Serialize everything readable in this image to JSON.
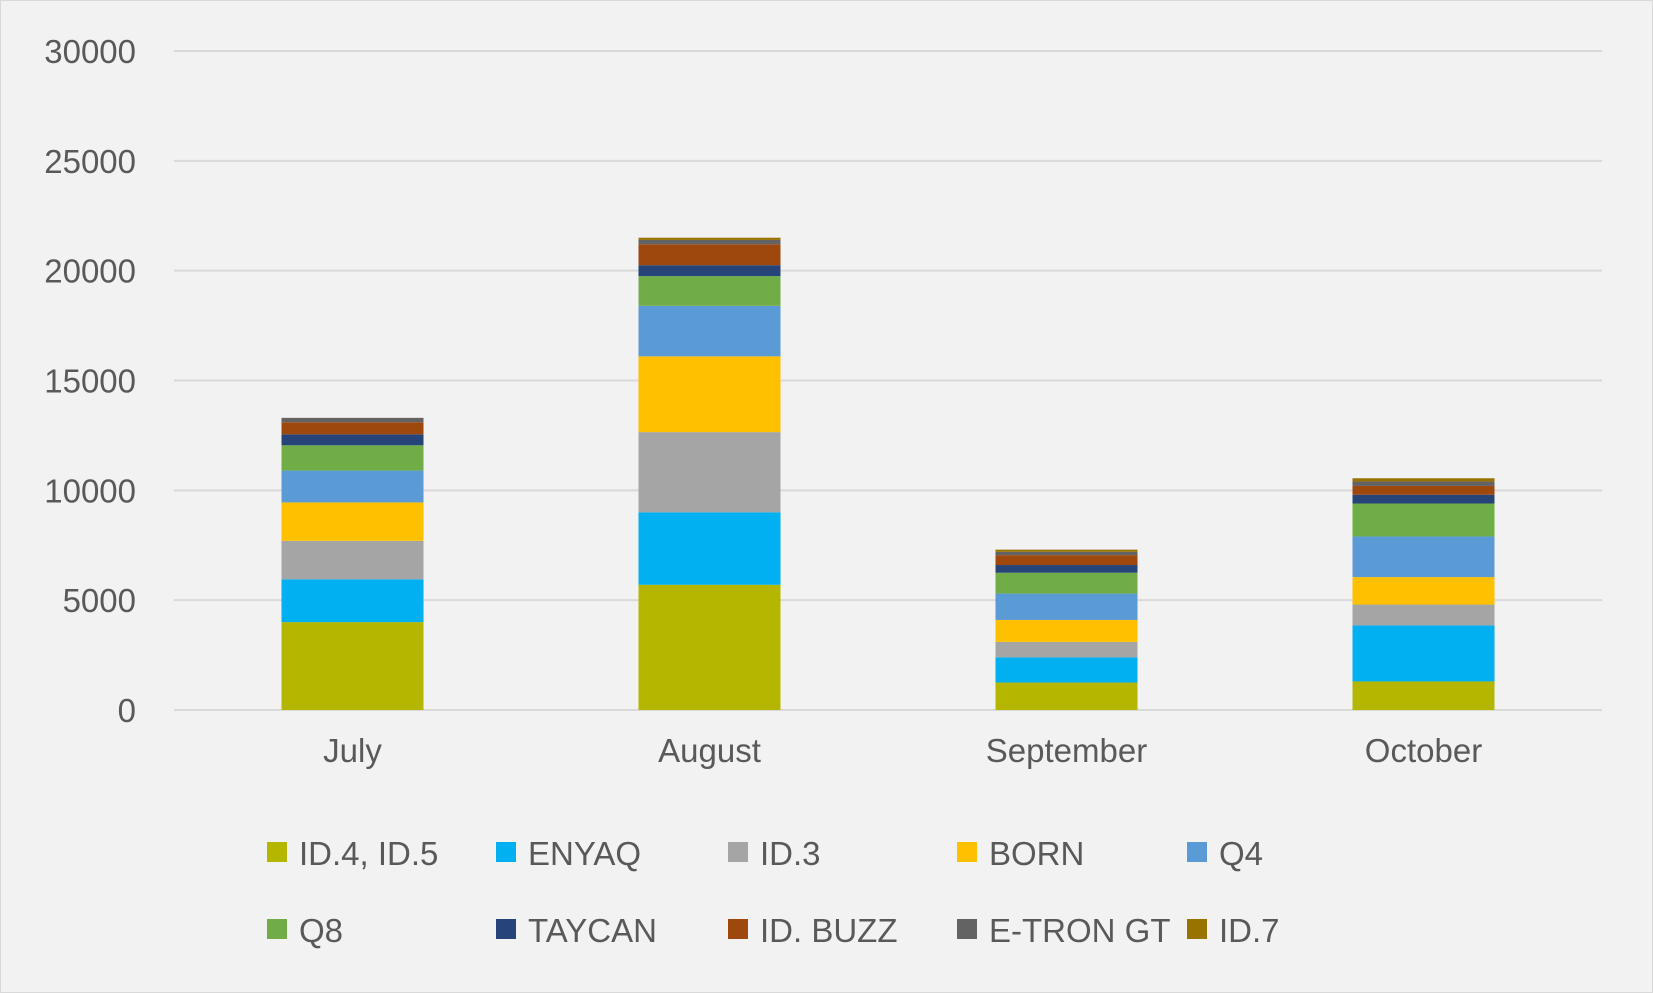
{
  "chart_data": {
    "type": "bar",
    "stacked": true,
    "categories": [
      "July",
      "August",
      "September",
      "October"
    ],
    "ylim": [
      0,
      30000
    ],
    "yticks": [
      0,
      5000,
      10000,
      15000,
      20000,
      25000,
      30000
    ],
    "ytick_labels": [
      "0",
      "5000",
      "10000",
      "15000",
      "20000",
      "25000",
      "30000"
    ],
    "grid": true,
    "legend_position": "bottom",
    "series": [
      {
        "name": "ID.4, ID.5",
        "color": "#b5b600",
        "values": [
          4000,
          5700,
          1250,
          1300
        ]
      },
      {
        "name": "ENYAQ",
        "color": "#00b0f0",
        "values": [
          1950,
          3300,
          1150,
          2550
        ]
      },
      {
        "name": "ID.3",
        "color": "#a5a5a5",
        "values": [
          1750,
          3650,
          700,
          950
        ]
      },
      {
        "name": "BORN",
        "color": "#ffc000",
        "values": [
          1750,
          3450,
          1000,
          1250
        ]
      },
      {
        "name": "Q4",
        "color": "#5b9bd5",
        "values": [
          1450,
          2300,
          1200,
          1850
        ]
      },
      {
        "name": "Q8",
        "color": "#70ad47",
        "values": [
          1150,
          1350,
          950,
          1500
        ]
      },
      {
        "name": "TAYCAN",
        "color": "#264478",
        "values": [
          500,
          500,
          350,
          400
        ]
      },
      {
        "name": "ID. BUZZ",
        "color": "#9e480e",
        "values": [
          550,
          950,
          450,
          400
        ]
      },
      {
        "name": "E-TRON GT",
        "color": "#636363",
        "values": [
          200,
          200,
          150,
          200
        ]
      },
      {
        "name": "ID.7",
        "color": "#997300",
        "values": [
          0,
          100,
          100,
          150
        ]
      }
    ]
  }
}
